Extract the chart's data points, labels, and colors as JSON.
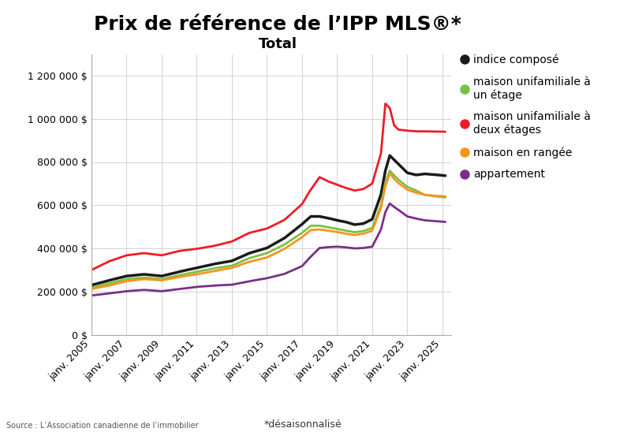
{
  "title": "Prix de référence de l’IPP MLS®*",
  "subtitle": "Total",
  "source": "Source : L’Association canadienne de l’immobilier",
  "footnote": "*désaisonnalisé",
  "xtick_labels": [
    "janv. 2005",
    "janv. 2007",
    "janv. 2009",
    "janv. 2011",
    "janv. 2013",
    "janv. 2015",
    "janv. 2017",
    "janv. 2019",
    "janv. 2021",
    "janv. 2023",
    "janv. 2025"
  ],
  "xtick_years": [
    2005,
    2007,
    2009,
    2011,
    2013,
    2015,
    2017,
    2019,
    2021,
    2023,
    2025
  ],
  "ytick_labels": [
    "0 $",
    "200 000 $",
    "400 000 $",
    "600 000 $",
    "800 000 $",
    "1 000 000 $",
    "1 200 000 $"
  ],
  "ytick_values": [
    0,
    200000,
    400000,
    600000,
    800000,
    1000000,
    1200000
  ],
  "ylim": [
    0,
    1300000
  ],
  "xlim": [
    2005,
    2025.5
  ],
  "series": {
    "indice_compose": {
      "label": "indice composé",
      "color": "#1a1a1a",
      "linewidth": 2.5
    },
    "maison_un_etage": {
      "label": "maison unifamiliale à\nun étage",
      "color": "#7ac143",
      "linewidth": 2.0
    },
    "maison_deux_etages": {
      "label": "maison unifamiliale à\ndeux étages",
      "color": "#ee1c25",
      "linewidth": 2.0
    },
    "maison_rangee": {
      "label": "maison en rangée",
      "color": "#f7941d",
      "linewidth": 2.0
    },
    "appartement": {
      "label": "appartement",
      "color": "#7b2d8b",
      "linewidth": 2.0
    }
  },
  "background_color": "#ffffff",
  "grid_color": "#cccccc",
  "legend_fontsize": 10,
  "axis_fontsize": 9,
  "title_fontsize": 18,
  "subtitle_fontsize": 13
}
